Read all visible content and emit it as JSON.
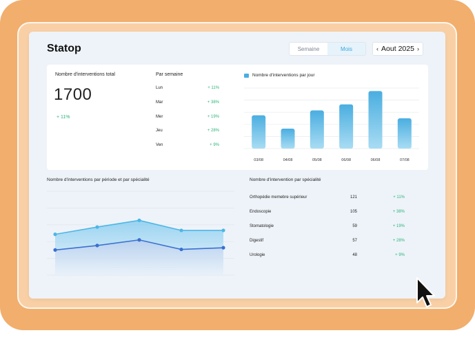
{
  "app": {
    "title": "Statop"
  },
  "period_toggle": {
    "options": [
      "Semaine",
      "Mois"
    ],
    "active": "Mois"
  },
  "month_picker": {
    "label": "Aout 2025",
    "prev_icon": "chevron-left-icon",
    "next_icon": "chevron-right-icon"
  },
  "kpi": {
    "label": "Nombre d'interventions total",
    "value": "1700",
    "change": "+ 11%"
  },
  "per_week": {
    "title": "Par semaine",
    "rows": [
      {
        "day": "Lun",
        "change": "+ 11%"
      },
      {
        "day": "Mar",
        "change": "+ 38%"
      },
      {
        "day": "Mer",
        "change": "+ 19%"
      },
      {
        "day": "Jeu",
        "change": "+ 28%"
      },
      {
        "day": "Ven",
        "change": "+ 9%"
      }
    ]
  },
  "specialty_table": {
    "title": "Nombre d'intervention par spécialité",
    "rows": [
      {
        "name": "Orthopédie memebre supérieur",
        "count": "121",
        "change": "+ 11%"
      },
      {
        "name": "Endoscopie",
        "count": "105",
        "change": "+ 38%"
      },
      {
        "name": "Stomatologie",
        "count": "59",
        "change": "+ 19%"
      },
      {
        "name": "Digestif",
        "count": "57",
        "change": "+ 28%"
      },
      {
        "name": "Urologie",
        "count": "48",
        "change": "+ 9%"
      }
    ]
  },
  "colors": {
    "accent": "#3ba6dc",
    "bar": "#4aaee0",
    "line_top": "#4cb6e6",
    "line_bottom": "#3a70d0",
    "positive": "#2cb37a",
    "frame": "#f1ae6d"
  },
  "chart_data": [
    {
      "type": "bar",
      "legend": "Nombre d'interventions par jour",
      "categories": [
        "03/08",
        "04/08",
        "05/08",
        "06/08",
        "06/08",
        "07/08"
      ],
      "values": [
        55,
        33,
        63,
        73,
        95,
        50
      ],
      "ylim": [
        0,
        100
      ],
      "grid": true
    },
    {
      "type": "area",
      "title": "Nombre d'interventions par période et par spécialité",
      "x_points": 5,
      "series": [
        {
          "values": [
            73,
            86,
            98,
            80,
            80
          ]
        },
        {
          "values": [
            45,
            53,
            63,
            46,
            49
          ]
        }
      ],
      "ylim": [
        0,
        150
      ],
      "grid": true
    }
  ]
}
